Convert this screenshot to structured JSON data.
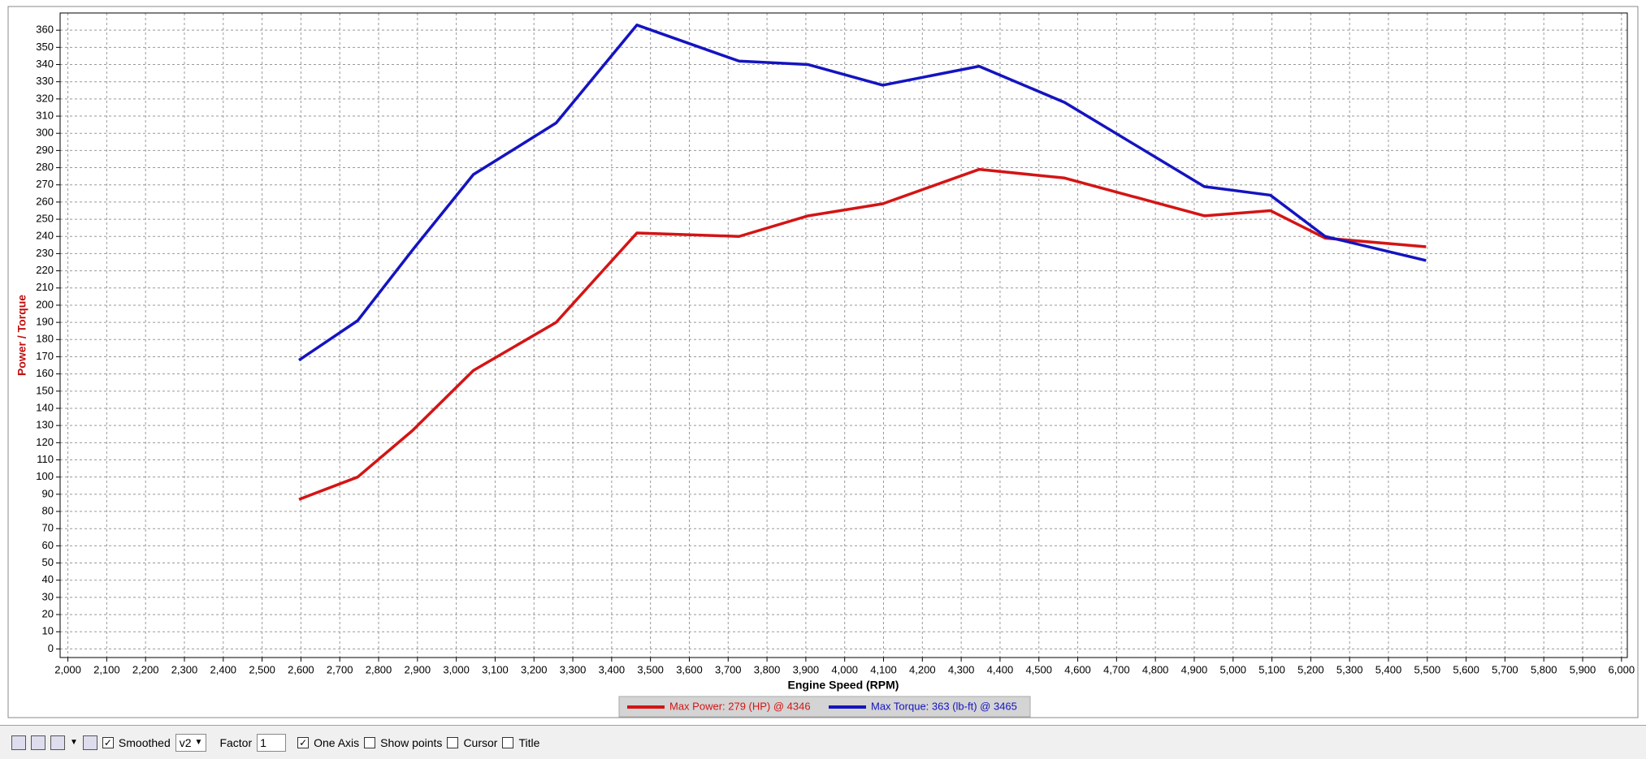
{
  "chart_data": {
    "type": "line",
    "xlabel": "Engine Speed (RPM)",
    "ylabel": "Power / Torque",
    "x": [
      2595,
      2746,
      2887,
      3044,
      3257,
      3465,
      3728,
      3906,
      4098,
      4346,
      4566,
      4926,
      5096,
      5237,
      5497
    ],
    "series": [
      {
        "name": "Max Power: 279 (HP) @ 4346",
        "color": "#d41414",
        "values": [
          87,
          100,
          127,
          162,
          190,
          242,
          240,
          252,
          259,
          279,
          274,
          252,
          255,
          239,
          234
        ]
      },
      {
        "name": "Max Torque: 363 (lb-ft) @ 3465",
        "color": "#1414c0",
        "values": [
          168,
          191,
          232,
          276,
          306,
          363,
          342,
          340,
          328,
          339,
          318,
          269,
          264,
          240,
          226
        ]
      }
    ],
    "xlim": [
      1980,
      6015
    ],
    "ylim": [
      -5,
      370
    ],
    "xticks": [
      {
        "value": 2000,
        "label": "2,000"
      },
      {
        "value": 2100,
        "label": "2,100"
      },
      {
        "value": 2200,
        "label": "2,200"
      },
      {
        "value": 2300,
        "label": "2,300"
      },
      {
        "value": 2400,
        "label": "2,400"
      },
      {
        "value": 2500,
        "label": "2,500"
      },
      {
        "value": 2600,
        "label": "2,600"
      },
      {
        "value": 2700,
        "label": "2,700"
      },
      {
        "value": 2800,
        "label": "2,800"
      },
      {
        "value": 2900,
        "label": "2,900"
      },
      {
        "value": 3000,
        "label": "3,000"
      },
      {
        "value": 3100,
        "label": "3,100"
      },
      {
        "value": 3200,
        "label": "3,200"
      },
      {
        "value": 3300,
        "label": "3,300"
      },
      {
        "value": 3400,
        "label": "3,400"
      },
      {
        "value": 3500,
        "label": "3,500"
      },
      {
        "value": 3600,
        "label": "3,600"
      },
      {
        "value": 3700,
        "label": "3,700"
      },
      {
        "value": 3800,
        "label": "3,800"
      },
      {
        "value": 3900,
        "label": "3,900"
      },
      {
        "value": 4000,
        "label": "4,000"
      },
      {
        "value": 4100,
        "label": "4,100"
      },
      {
        "value": 4200,
        "label": "4,200"
      },
      {
        "value": 4300,
        "label": "4,300"
      },
      {
        "value": 4400,
        "label": "4,400"
      },
      {
        "value": 4500,
        "label": "4,500"
      },
      {
        "value": 4600,
        "label": "4,600"
      },
      {
        "value": 4700,
        "label": "4,700"
      },
      {
        "value": 4800,
        "label": "4,800"
      },
      {
        "value": 4900,
        "label": "4,900"
      },
      {
        "value": 5000,
        "label": "5,000"
      },
      {
        "value": 5100,
        "label": "5,100"
      },
      {
        "value": 5200,
        "label": "5,200"
      },
      {
        "value": 5300,
        "label": "5,300"
      },
      {
        "value": 5400,
        "label": "5,400"
      },
      {
        "value": 5500,
        "label": "5,500"
      },
      {
        "value": 5600,
        "label": "5,600"
      },
      {
        "value": 5700,
        "label": "5,700"
      },
      {
        "value": 5800,
        "label": "5,800"
      },
      {
        "value": 5900,
        "label": "5,900"
      },
      {
        "value": 6000,
        "label": "6,000"
      }
    ],
    "yticks": [
      0,
      10,
      20,
      30,
      40,
      50,
      60,
      70,
      80,
      90,
      100,
      110,
      120,
      130,
      140,
      150,
      160,
      170,
      180,
      190,
      200,
      210,
      220,
      230,
      240,
      250,
      260,
      270,
      280,
      290,
      300,
      310,
      320,
      330,
      340,
      350,
      360
    ],
    "grid": true
  },
  "toolbar": {
    "smoothed": {
      "label": "Smoothed",
      "checked": true
    },
    "version": "v2",
    "factor": {
      "label": "Factor",
      "value": "1"
    },
    "one_axis": {
      "label": "One Axis",
      "checked": true
    },
    "show_points": {
      "label": "Show points",
      "checked": false
    },
    "cursor": {
      "label": "Cursor",
      "checked": false
    },
    "title": {
      "label": "Title",
      "checked": false
    }
  }
}
